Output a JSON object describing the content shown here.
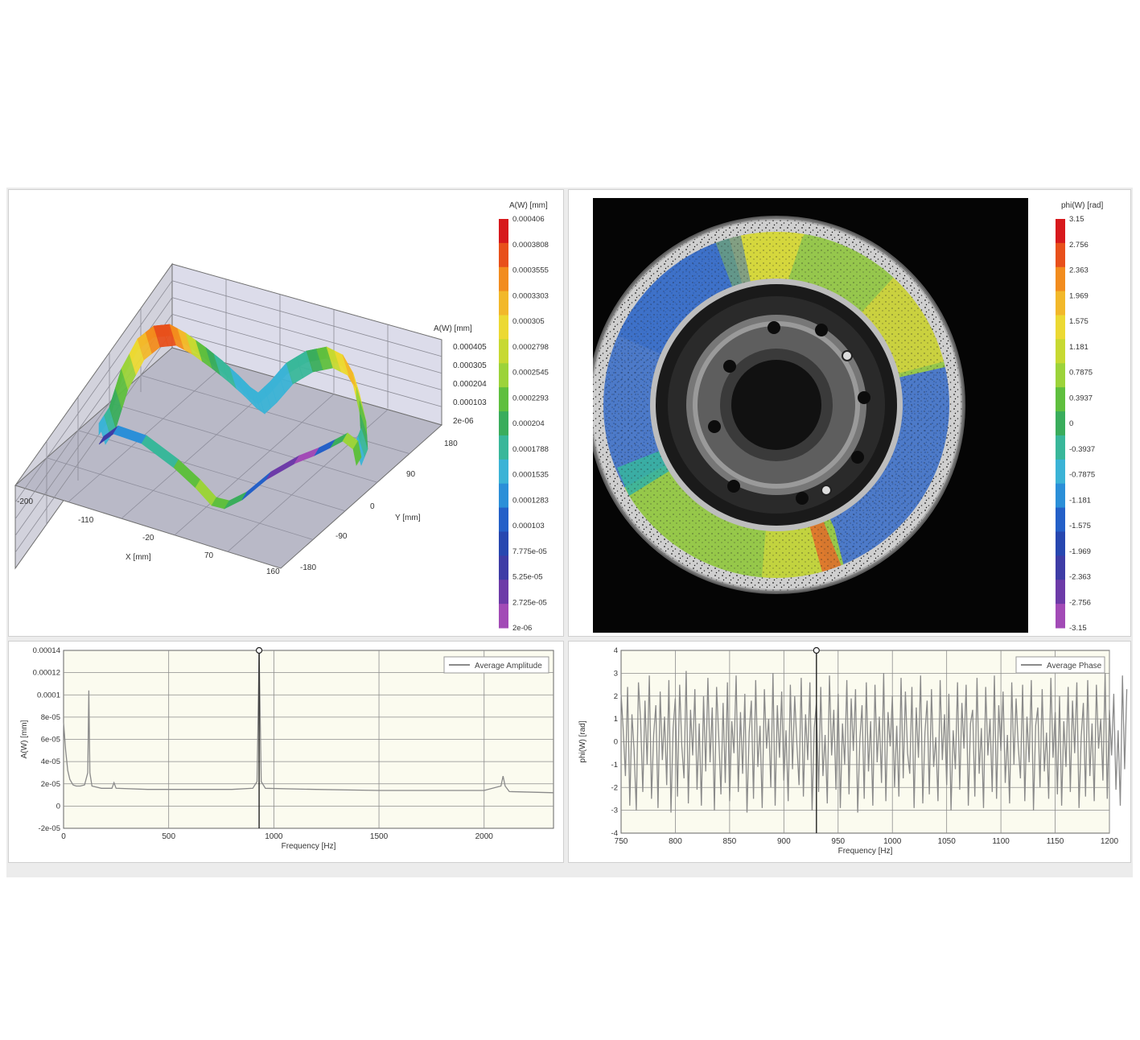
{
  "surface_plot": {
    "z_axis_label": "A(W) [mm]",
    "z_ticks": [
      "0.000405",
      "0.000305",
      "0.000204",
      "0.000103",
      "2e-06"
    ],
    "x_axis_label": "X [mm]",
    "x_ticks": [
      "-200",
      "-110",
      "-20",
      "70",
      "160"
    ],
    "y_axis_label": "Y [mm]",
    "y_ticks": [
      "180",
      "90",
      "0",
      "-90",
      "-180"
    ]
  },
  "amplitude_colorbar": {
    "title": "A(W) [mm]",
    "labels": [
      "0.000406",
      "0.0003808",
      "0.0003555",
      "0.0003303",
      "0.000305",
      "0.0002798",
      "0.0002545",
      "0.0002293",
      "0.000204",
      "0.0001788",
      "0.0001535",
      "0.0001283",
      "0.000103",
      "7.775e-05",
      "5.25e-05",
      "2.725e-05",
      "2e-06"
    ],
    "colors": [
      "#d7191c",
      "#e8501b",
      "#f28c1e",
      "#f2b82a",
      "#ecd933",
      "#c7d932",
      "#9cd33a",
      "#5fbf3e",
      "#3aad5c",
      "#39b79a",
      "#3bb3d6",
      "#2b8fd8",
      "#2460c8",
      "#2747b0",
      "#3e3ca6",
      "#6d3ba8",
      "#a24bb6"
    ]
  },
  "phase_colorbar": {
    "title": "phi(W) [rad]",
    "labels": [
      "3.15",
      "2.756",
      "2.363",
      "1.969",
      "1.575",
      "1.181",
      "0.7875",
      "0.3937",
      "0",
      "-0.3937",
      "-0.7875",
      "-1.181",
      "-1.575",
      "-1.969",
      "-2.363",
      "-2.756",
      "-3.15"
    ],
    "colors": [
      "#d7191c",
      "#e8501b",
      "#f28c1e",
      "#f2b82a",
      "#ecd933",
      "#c7d932",
      "#9cd33a",
      "#5fbf3e",
      "#3aad5c",
      "#39b79a",
      "#3bb3d6",
      "#2b8fd8",
      "#2460c8",
      "#2747b0",
      "#3e3ca6",
      "#6d3ba8",
      "#a24bb6"
    ]
  },
  "chart_data": [
    {
      "type": "line",
      "xlabel": "Frequency [Hz]",
      "ylabel": "A(W) [mm]",
      "xlim": [
        0,
        2330
      ],
      "ylim": [
        -2e-05,
        0.00014
      ],
      "x_ticks": [
        "0",
        "500",
        "1000",
        "1500",
        "2000"
      ],
      "y_ticks": [
        "0.00014",
        "0.00012",
        "0.0001",
        "8e-05",
        "6e-05",
        "4e-05",
        "2e-05",
        "0",
        "-2e-05"
      ],
      "legend": "top-right",
      "grid": true,
      "series": [
        {
          "name": "Average Amplitude",
          "color": "#8a8a8a",
          "points": [
            [
              0,
              7.5e-05
            ],
            [
              10,
              5e-05
            ],
            [
              20,
              3.2e-05
            ],
            [
              30,
              2.4e-05
            ],
            [
              45,
              1.9e-05
            ],
            [
              60,
              1.8e-05
            ],
            [
              80,
              1.8e-05
            ],
            [
              100,
              1.9e-05
            ],
            [
              115,
              3e-05
            ],
            [
              120,
              0.000104
            ],
            [
              125,
              3e-05
            ],
            [
              135,
              1.8e-05
            ],
            [
              180,
              1.6e-05
            ],
            [
              230,
              1.6e-05
            ],
            [
              240,
              2.1e-05
            ],
            [
              250,
              1.6e-05
            ],
            [
              400,
              1.5e-05
            ],
            [
              600,
              1.5e-05
            ],
            [
              800,
              1.5e-05
            ],
            [
              900,
              1.6e-05
            ],
            [
              920,
              2.2e-05
            ],
            [
              930,
              0.00014
            ],
            [
              940,
              2.2e-05
            ],
            [
              960,
              1.6e-05
            ],
            [
              1200,
              1.5e-05
            ],
            [
              1500,
              1.4e-05
            ],
            [
              1800,
              1.4e-05
            ],
            [
              2000,
              1.4e-05
            ],
            [
              2080,
              1.8e-05
            ],
            [
              2090,
              2.7e-05
            ],
            [
              2100,
              1.8e-05
            ],
            [
              2120,
              1.3e-05
            ],
            [
              2330,
              1.2e-05
            ]
          ]
        }
      ],
      "marker": {
        "x": 930
      }
    },
    {
      "type": "line",
      "xlabel": "Frequency [Hz]",
      "ylabel": "phi(W) [rad]",
      "xlim": [
        750,
        1200
      ],
      "ylim": [
        -4,
        4
      ],
      "x_ticks": [
        "750",
        "800",
        "850",
        "900",
        "950",
        "1000",
        "1050",
        "1100",
        "1150",
        "1200"
      ],
      "y_ticks": [
        "4",
        "3",
        "2",
        "1",
        "0",
        "-1",
        "-2",
        "-3",
        "-4"
      ],
      "legend": "top-right",
      "grid": true,
      "series": [
        {
          "name": "Average Phase",
          "color": "#8a8a8a",
          "x_start": 750,
          "x_step": 2,
          "values": [
            2.1,
            0.5,
            -1.5,
            2.4,
            -2.8,
            1.2,
            -0.4,
            -3.0,
            2.6,
            0.9,
            -2.2,
            1.8,
            -1.0,
            2.9,
            -2.5,
            0.3,
            1.6,
            -2.9,
            2.2,
            -0.8,
            1.1,
            -1.9,
            2.7,
            -3.1,
            0.6,
            1.9,
            -2.4,
            2.5,
            -0.2,
            -1.6,
            3.1,
            -2.7,
            1.4,
            -0.6,
            2.3,
            -2.1,
            0.8,
            -2.8,
            2.0,
            -1.3,
            2.8,
            -0.9,
            1.5,
            -3.0,
            2.4,
            0.2,
            -2.3,
            1.7,
            -1.8,
            2.6,
            -2.6,
            0.9,
            -0.5,
            2.9,
            -2.2,
            1.3,
            -1.4,
            2.1,
            -3.1,
            0.4,
            1.8,
            -2.5,
            2.7,
            -1.1,
            0.7,
            -2.9,
            2.3,
            -0.3,
            1.0,
            -2.0,
            3.0,
            -2.8,
            1.6,
            -0.7,
            2.2,
            -1.7,
            0.5,
            -2.6,
            2.5,
            -1.2,
            2.0,
            -0.1,
            -1.9,
            2.8,
            -2.4,
            1.2,
            -0.8,
            2.6,
            -3.0,
            0.6,
            1.7,
            -2.2,
            2.4,
            -1.5,
            0.3,
            -2.7,
            2.9,
            -0.6,
            1.4,
            -2.1,
            2.1,
            -2.9,
            0.8,
            -1.0,
            2.7,
            -2.3,
            1.9,
            -0.4,
            2.3,
            -3.1,
            0.1,
            1.6,
            -2.5,
            2.6,
            -1.3,
            0.9,
            -2.8,
            2.5,
            -0.9,
            1.1,
            -1.8,
            3.0,
            -2.6,
            1.3,
            -0.2,
            2.0,
            -2.0,
            0.7,
            -2.4,
            2.8,
            -1.6,
            2.2,
            -0.5,
            -1.4,
            2.4,
            -2.9,
            1.5,
            -0.7,
            2.9,
            -2.7,
            0.4,
            1.8,
            -2.3,
            2.3,
            -1.1,
            0.2,
            -2.6,
            2.7,
            -0.8,
            1.2,
            -1.9,
            2.1,
            -3.0,
            0.5,
            -1.2,
            2.6,
            -2.1,
            1.7,
            -0.3,
            2.5,
            -2.8,
            0.8,
            1.4,
            -2.4,
            2.8,
            -1.4,
            0.6,
            -2.9,
            2.4,
            -0.6,
            1.0,
            -2.2,
            2.9,
            -2.5,
            1.6,
            -0.4,
            2.2,
            -1.8,
            0.3,
            -2.7,
            2.6,
            -1.0,
            1.9,
            -0.2,
            -1.6,
            2.5,
            -2.6,
            1.1,
            -0.9,
            2.7,
            -3.0,
            0.7,
            1.5,
            -2.0,
            2.3,
            -1.3,
            0.4,
            -2.5,
            2.8,
            -0.7,
            1.3,
            -2.3,
            2.0,
            -2.8,
            0.9,
            -1.1,
            2.4,
            -2.2,
            1.8,
            -0.5,
            2.6,
            -2.9,
            0.2,
            1.7,
            -2.4,
            2.7,
            -1.5,
            0.8,
            -2.6,
            2.5,
            -0.3,
            1.0,
            -1.7,
            3.0,
            -2.5,
            1.4,
            -0.6,
            2.1,
            -2.1,
            0.5,
            -2.8,
            2.9,
            -1.2,
            2.3
          ]
        }
      ],
      "marker": {
        "x": 930
      }
    }
  ]
}
